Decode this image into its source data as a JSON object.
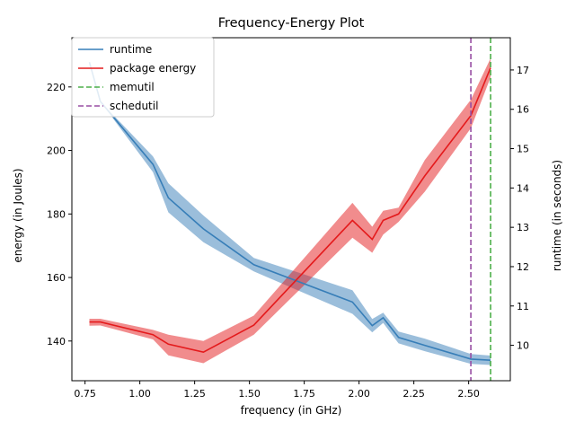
{
  "chart_data": {
    "type": "line",
    "title": "Frequency-Energy Plot",
    "xlabel": "frequency (in GHz)",
    "ylabel": "energy (in Joules)",
    "y2label": "runtime (in seconds)",
    "xlim": [
      0.69,
      2.69
    ],
    "ylim": [
      127.5,
      235.5
    ],
    "y2lim": [
      9.1,
      17.82
    ],
    "xticks": [
      0.75,
      1.0,
      1.25,
      1.5,
      1.75,
      2.0,
      2.25,
      2.5
    ],
    "xtick_labels": [
      "0.75",
      "1.00",
      "1.25",
      "1.50",
      "1.75",
      "2.00",
      "2.25",
      "2.50"
    ],
    "yticks": [
      140,
      160,
      180,
      200,
      220
    ],
    "ytick_labels": [
      "140",
      "160",
      "180",
      "200",
      "220"
    ],
    "y2ticks": [
      10,
      11,
      12,
      13,
      14,
      15,
      16,
      17
    ],
    "y2tick_labels": [
      "10",
      "11",
      "12",
      "13",
      "14",
      "15",
      "16",
      "17"
    ],
    "legend_position": "top-left",
    "grid": false,
    "x": [
      0.77,
      0.82,
      1.06,
      1.13,
      1.29,
      1.52,
      1.97,
      2.06,
      2.11,
      2.18,
      2.3,
      2.51,
      2.6
    ],
    "series": [
      {
        "name": "runtime",
        "axis": "right",
        "color": "#377eb8",
        "values": [
          17.2,
          16.2,
          14.6,
          13.75,
          12.96,
          12.05,
          11.1,
          10.5,
          10.7,
          10.2,
          10.0,
          9.65,
          9.62
        ],
        "lower": [
          17.2,
          16.2,
          14.4,
          13.38,
          12.62,
          11.88,
          10.8,
          10.33,
          10.57,
          10.05,
          9.85,
          9.53,
          9.5
        ],
        "upper": [
          17.2,
          16.2,
          14.8,
          14.12,
          13.3,
          12.22,
          11.4,
          10.67,
          10.83,
          10.35,
          10.17,
          9.78,
          9.74
        ]
      },
      {
        "name": "package energy",
        "axis": "left",
        "color": "#e41a1c",
        "values": [
          146.0,
          146.0,
          142.0,
          139.0,
          136.5,
          145.0,
          178.0,
          172.0,
          178.0,
          180.0,
          192.0,
          211.0,
          226.0
        ],
        "lower": [
          144.8,
          144.9,
          140.5,
          135.5,
          133.0,
          142.0,
          172.5,
          167.8,
          173.5,
          177.5,
          187.0,
          207.0,
          223.0
        ],
        "upper": [
          147.0,
          147.0,
          143.5,
          142.0,
          140.0,
          148.0,
          183.5,
          176.0,
          181.0,
          182.0,
          197.0,
          216.0,
          229.0
        ]
      }
    ],
    "vlines": [
      {
        "name": "memutil",
        "x": 2.6,
        "color": "#4daf4a",
        "style": "dashed"
      },
      {
        "name": "schedutil",
        "x": 2.51,
        "color": "#984ea3",
        "style": "dashed"
      }
    ]
  }
}
